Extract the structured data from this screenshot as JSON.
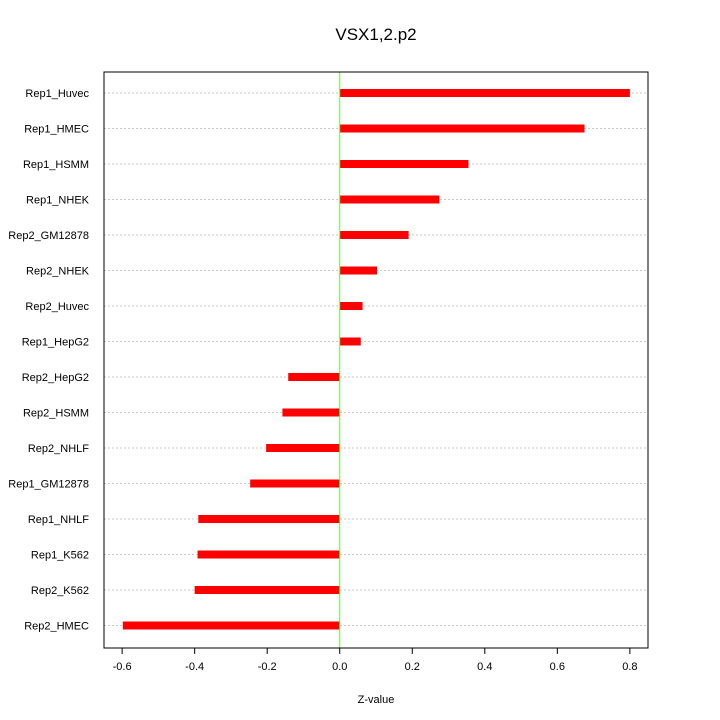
{
  "chart_data": {
    "type": "bar",
    "orientation": "horizontal",
    "title": "VSX1,2.p2",
    "xlabel": "Z-value",
    "ylabel": "",
    "xlim": [
      -0.65,
      0.85
    ],
    "x_ticks": [
      -0.6,
      -0.4,
      -0.2,
      0.0,
      0.2,
      0.4,
      0.6,
      0.8
    ],
    "x_tick_labels": [
      "-0.6",
      "-0.4",
      "-0.2",
      "0.0",
      "0.2",
      "0.4",
      "0.6",
      "0.8"
    ],
    "reference_line": 0.0,
    "grid": "horizontal dotted",
    "bar_color": "#ff0000",
    "reference_line_color": "#66ee44",
    "categories": [
      "Rep1_Huvec",
      "Rep1_HMEC",
      "Rep1_HSMM",
      "Rep1_NHEK",
      "Rep2_GM12878",
      "Rep2_NHEK",
      "Rep2_Huvec",
      "Rep1_HepG2",
      "Rep2_HepG2",
      "Rep2_HSMM",
      "Rep2_NHLF",
      "Rep1_GM12878",
      "Rep1_NHLF",
      "Rep1_K562",
      "Rep2_K562",
      "Rep2_HMEC"
    ],
    "values": [
      0.8,
      0.675,
      0.355,
      0.275,
      0.19,
      0.103,
      0.063,
      0.058,
      -0.142,
      -0.158,
      -0.203,
      -0.247,
      -0.39,
      -0.392,
      -0.4,
      -0.598
    ]
  }
}
